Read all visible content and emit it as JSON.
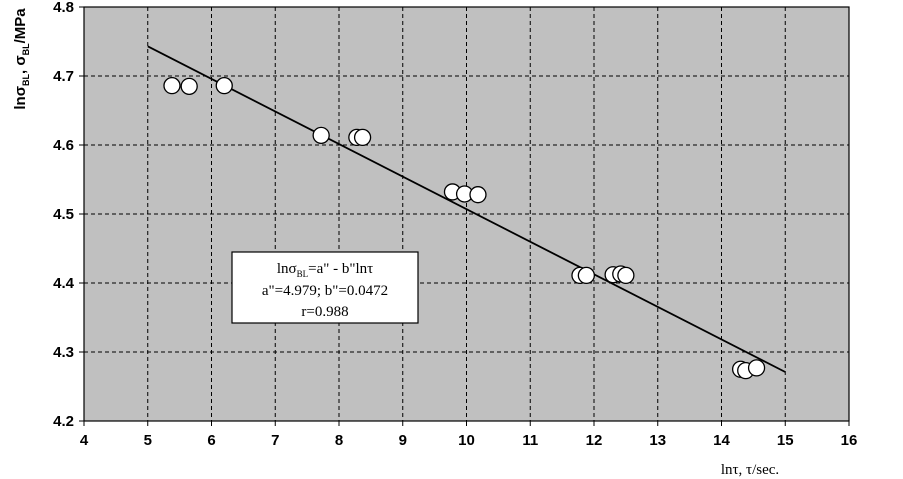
{
  "chart_data": {
    "type": "scatter",
    "xlim": [
      4,
      16
    ],
    "ylim": [
      4.2,
      4.8
    ],
    "x_ticks": [
      "4",
      "5",
      "6",
      "7",
      "8",
      "9",
      "10",
      "11",
      "12",
      "13",
      "14",
      "15",
      "16"
    ],
    "y_ticks": [
      "4.2",
      "4.3",
      "4.4",
      "4.5",
      "4.6",
      "4.7",
      "4.8"
    ],
    "grid": true,
    "background": "#c0c0c0",
    "xlabel": "lnτ, τ/sec.",
    "ylabel": {
      "parts": [
        "lnσ",
        "BL",
        ", σ",
        "BL",
        "/MPa"
      ]
    },
    "points": [
      {
        "x": 5.38,
        "y": 4.686
      },
      {
        "x": 5.65,
        "y": 4.685
      },
      {
        "x": 6.2,
        "y": 4.686
      },
      {
        "x": 7.72,
        "y": 4.614
      },
      {
        "x": 8.28,
        "y": 4.611
      },
      {
        "x": 8.37,
        "y": 4.611
      },
      {
        "x": 9.78,
        "y": 4.532
      },
      {
        "x": 9.97,
        "y": 4.529
      },
      {
        "x": 10.18,
        "y": 4.528
      },
      {
        "x": 11.78,
        "y": 4.411
      },
      {
        "x": 11.88,
        "y": 4.411
      },
      {
        "x": 12.3,
        "y": 4.412
      },
      {
        "x": 12.42,
        "y": 4.413
      },
      {
        "x": 12.5,
        "y": 4.411
      },
      {
        "x": 14.3,
        "y": 4.275
      },
      {
        "x": 14.38,
        "y": 4.273
      },
      {
        "x": 14.55,
        "y": 4.277
      }
    ],
    "fit_line": {
      "x1": 5,
      "y1": 4.743,
      "x2": 15,
      "y2": 4.271
    },
    "annotation": {
      "line1_parts": [
        "lnσ",
        "BL",
        "=a\" - b\"lnτ"
      ],
      "line2": "a\"=4.979; b\"=0.0472",
      "line3": "r=0.988"
    }
  }
}
